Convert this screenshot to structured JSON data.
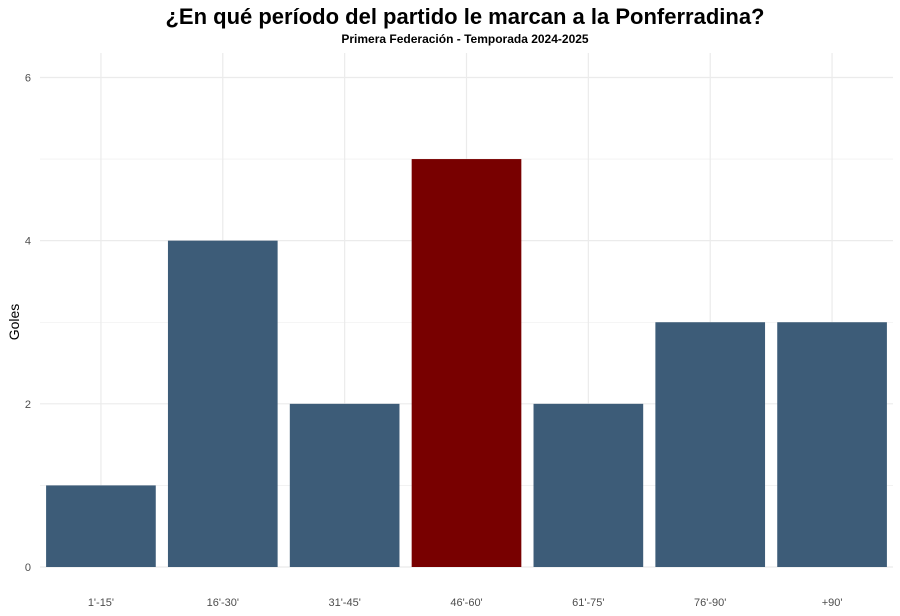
{
  "chart_data": {
    "type": "bar",
    "title": "¿En qué período del partido le marcan a la Ponferradina?",
    "subtitle": "Primera Federación - Temporada 2024-2025",
    "xlabel": "",
    "ylabel": "Goles",
    "categories": [
      "1'-15'",
      "16'-30'",
      "31'-45'",
      "46'-60'",
      "61'-75'",
      "76'-90'",
      "+90'"
    ],
    "values": [
      1,
      4,
      2,
      5,
      2,
      3,
      3
    ],
    "ylim": [
      0,
      6
    ],
    "yticks": [
      0,
      2,
      4,
      6
    ],
    "grid": true,
    "legend": "none",
    "colors": {
      "default": "#3d5c78",
      "highlight": "#780000",
      "grid": "#ebebeb"
    },
    "highlight_category": "46'-60'"
  }
}
